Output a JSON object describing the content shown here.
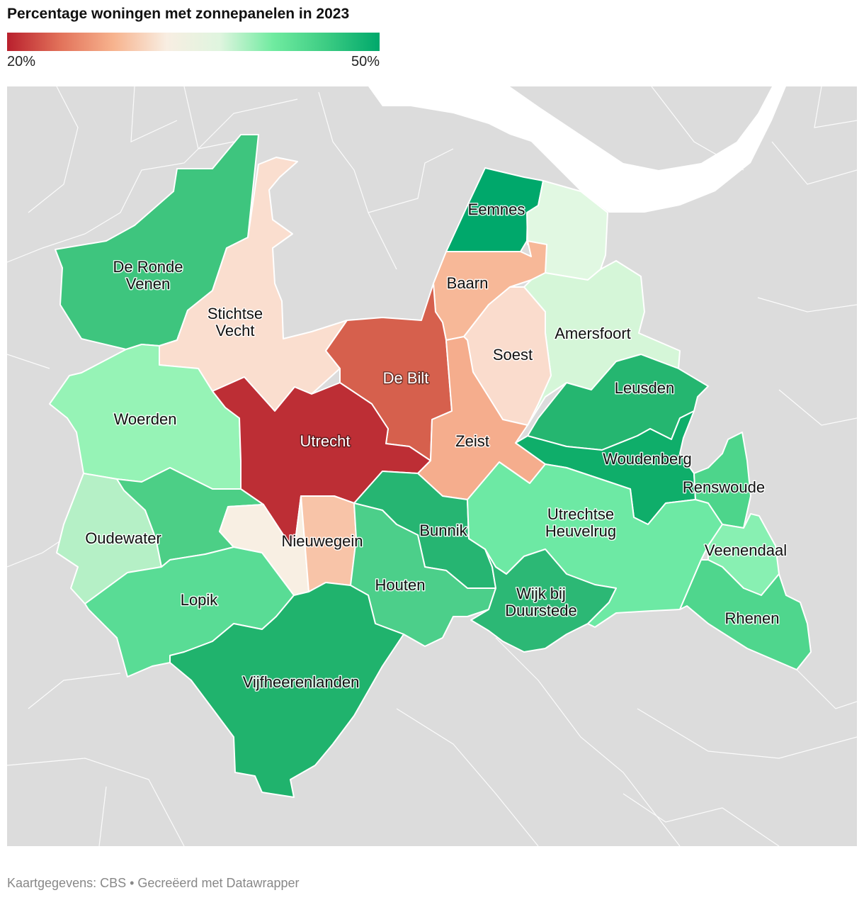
{
  "title": "Percentage woningen met zonnepanelen in 2023",
  "legend": {
    "min": "20%",
    "max": "50%"
  },
  "footer": "Kaartgegevens: CBS • Gecreëerd met Datawrapper",
  "colors": {
    "background": "#ffffff",
    "surrounding_land": "#dcdcdc",
    "water": "#ffffff",
    "scale": [
      "#b9202d",
      "#e2725a",
      "#f7b38e",
      "#f8eee2",
      "#dff5df",
      "#70eba0",
      "#3ccc83",
      "#00a86b"
    ]
  },
  "municipalities": [
    {
      "id": "de-ronde-venen",
      "label": [
        "De Ronde",
        "Venen"
      ],
      "color": "#3ec57e"
    },
    {
      "id": "stichtse-vecht",
      "label": [
        "Stichtse",
        "Vecht"
      ],
      "color": "#fadecf"
    },
    {
      "id": "eemnes",
      "label": [
        "Eemnes"
      ],
      "color": "#00a86b"
    },
    {
      "id": "bunschoten",
      "label": [],
      "color": "#e1f8e2"
    },
    {
      "id": "baarn",
      "label": [
        "Baarn"
      ],
      "color": "#f7b898"
    },
    {
      "id": "amersfoort",
      "label": [
        "Amersfoort"
      ],
      "color": "#d5f6d8"
    },
    {
      "id": "soest",
      "label": [
        "Soest"
      ],
      "color": "#fadccd"
    },
    {
      "id": "de-bilt",
      "label": [
        "De Bilt"
      ],
      "color": "#d6604d",
      "dark": true
    },
    {
      "id": "woerden",
      "label": [
        "Woerden"
      ],
      "color": "#96f3b6"
    },
    {
      "id": "utrecht",
      "label": [
        "Utrecht"
      ],
      "color": "#bd2e35",
      "dark": true
    },
    {
      "id": "zeist",
      "label": [
        "Zeist"
      ],
      "color": "#f5ad8d"
    },
    {
      "id": "leusden",
      "label": [
        "Leusden"
      ],
      "color": "#25b670"
    },
    {
      "id": "woudenberg",
      "label": [
        "Woudenberg"
      ],
      "color": "#0fae6a"
    },
    {
      "id": "renswoude",
      "label": [
        "Renswoude"
      ],
      "color": "#4dd58b"
    },
    {
      "id": "oudewater",
      "label": [
        "Oudewater"
      ],
      "color": "#b5f0c6"
    },
    {
      "id": "montfoort",
      "label": [],
      "color": "#4ccf86"
    },
    {
      "id": "ijsselstein",
      "label": [],
      "color": "#f8efe3"
    },
    {
      "id": "nieuwegein",
      "label": [
        "Nieuwegein"
      ],
      "color": "#f8c4a8"
    },
    {
      "id": "bunnik",
      "label": [
        "Bunnik"
      ],
      "color": "#26b572"
    },
    {
      "id": "utrechtse-heuvelrug",
      "label": [
        "Utrechtse",
        "Heuvelrug"
      ],
      "color": "#6de9a4"
    },
    {
      "id": "veenendaal",
      "label": [
        "Veenendaal"
      ],
      "color": "#88f0b2"
    },
    {
      "id": "lopik",
      "label": [
        "Lopik"
      ],
      "color": "#59dc95"
    },
    {
      "id": "houten",
      "label": [
        "Houten"
      ],
      "color": "#4ccf8a"
    },
    {
      "id": "wijk-bij-duurstede",
      "label": [
        "Wijk bij",
        "Duurstede"
      ],
      "color": "#2cb875"
    },
    {
      "id": "rhenen",
      "label": [
        "Rhenen"
      ],
      "color": "#4fd68d"
    },
    {
      "id": "vijfheerenlanden",
      "label": [
        "Vijfheerenlanden"
      ],
      "color": "#20b36d"
    }
  ]
}
